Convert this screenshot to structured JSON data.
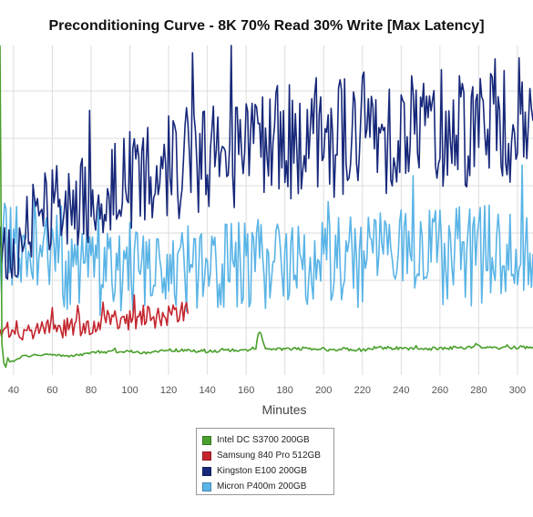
{
  "chart_data": {
    "type": "line",
    "title": "Preconditioning Curve - 8K 70% Read 30% Write [Max Latency]",
    "xlabel": "Minutes",
    "ylabel": "",
    "x_ticks": [
      40,
      60,
      80,
      100,
      120,
      140,
      160,
      180,
      200,
      220,
      240,
      260,
      280,
      300
    ],
    "xlim": [
      33,
      308
    ],
    "ylim": [
      0,
      420
    ],
    "grid": true,
    "legend_position": "bottom-center",
    "series": [
      {
        "name": "Intel DC S3700 200GB",
        "color": "#4aa02c",
        "x": [
          33,
          34,
          35,
          36,
          37,
          38,
          40,
          45,
          50,
          60,
          70,
          80,
          90,
          100,
          110,
          120,
          130,
          140,
          150,
          160,
          165,
          167,
          170,
          180,
          190,
          200,
          210,
          220,
          230,
          240,
          250,
          260,
          270,
          280,
          290,
          300,
          308
        ],
        "y": [
          420,
          40,
          15,
          10,
          22,
          16,
          18,
          24,
          25,
          26,
          24,
          28,
          30,
          30,
          28,
          32,
          31,
          30,
          32,
          31,
          35,
          58,
          32,
          33,
          34,
          32,
          33,
          32,
          35,
          34,
          33,
          34,
          35,
          36,
          34,
          35,
          36
        ]
      },
      {
        "name": "Samsung 840 Pro 512GB",
        "color": "#c4262e",
        "x": [
          33,
          40,
          50,
          60,
          70,
          80,
          90,
          100,
          110,
          120,
          130
        ],
        "y": [
          60,
          54,
          56,
          58,
          62,
          65,
          68,
          72,
          74,
          76,
          78
        ]
      },
      {
        "name": "Kingston E100 200GB",
        "color": "#17287a",
        "x": [
          33,
          40,
          50,
          60,
          70,
          80,
          90,
          100,
          110,
          120,
          130,
          140,
          150,
          160,
          170,
          180,
          190,
          200,
          210,
          220,
          230,
          240,
          250,
          260,
          270,
          280,
          290,
          300,
          308
        ],
        "y": [
          150,
          152,
          195,
          215,
          222,
          228,
          240,
          252,
          260,
          266,
          272,
          278,
          282,
          288,
          292,
          296,
          300,
          304,
          306,
          310,
          312,
          314,
          316,
          318,
          320,
          320,
          322,
          322,
          324
        ]
      },
      {
        "name": "Micron P400m 200GB",
        "color": "#5ab4e6",
        "x": [
          33,
          40,
          50,
          60,
          70,
          80,
          90,
          100,
          110,
          120,
          130,
          140,
          150,
          160,
          170,
          180,
          190,
          200,
          210,
          220,
          230,
          240,
          250,
          260,
          270,
          280,
          290,
          300,
          308
        ],
        "y": [
          150,
          168,
          162,
          150,
          140,
          132,
          128,
          130,
          130,
          132,
          135,
          138,
          140,
          141,
          142,
          143,
          144,
          145,
          146,
          147,
          148,
          149,
          150,
          151,
          152,
          152,
          153,
          153,
          154
        ]
      }
    ]
  }
}
